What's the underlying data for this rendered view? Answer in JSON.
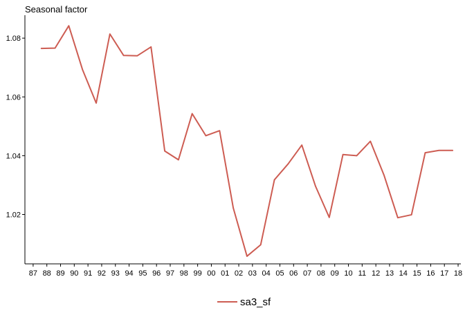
{
  "chart_data": {
    "type": "line",
    "ylabel": "Seasonal factor",
    "xlabel": "",
    "title": "",
    "categories": [
      "87",
      "88",
      "89",
      "90",
      "91",
      "92",
      "93",
      "94",
      "95",
      "96",
      "97",
      "98",
      "99",
      "00",
      "01",
      "02",
      "03",
      "04",
      "05",
      "06",
      "07",
      "08",
      "09",
      "10",
      "11",
      "12",
      "13",
      "14",
      "15",
      "16",
      "17",
      "18"
    ],
    "x_tick_values": [
      1987,
      1988,
      1989,
      1990,
      1991,
      1992,
      1993,
      1994,
      1995,
      1996,
      1997,
      1998,
      1999,
      2000,
      2001,
      2002,
      2003,
      2004,
      2005,
      2006,
      2007,
      2008,
      2009,
      2010,
      2011,
      2012,
      2013,
      2014,
      2015,
      2016,
      2017,
      2018
    ],
    "xlim": [
      1986.4,
      2018.2
    ],
    "ylim": [
      1.0032,
      1.0878
    ],
    "y_ticks": [
      1.02,
      1.04,
      1.06,
      1.08
    ],
    "y_tick_labels": [
      "1.02",
      "1.04",
      "1.06",
      "1.08"
    ],
    "grid": false,
    "legend": "bottom",
    "series": [
      {
        "name": "sa3_sf",
        "color": "#cd5c52",
        "x": [
          1987.6,
          1988.6,
          1989.6,
          1990.6,
          1991.6,
          1992.6,
          1993.6,
          1994.6,
          1995.6,
          1996.6,
          1997.6,
          1998.6,
          1999.6,
          2000.6,
          2001.6,
          2002.6,
          2003.6,
          2004.6,
          2005.6,
          2006.6,
          2007.6,
          2008.6,
          2009.6,
          2010.6,
          2011.6,
          2012.6,
          2013.6,
          2014.6,
          2015.6,
          2016.6,
          2017.6
        ],
        "y": [
          1.0765,
          1.0766,
          1.0842,
          1.0693,
          1.0579,
          1.0814,
          1.0741,
          1.074,
          1.077,
          1.0416,
          1.0386,
          1.0543,
          1.0468,
          1.0485,
          1.0222,
          1.0058,
          1.0097,
          1.0318,
          1.0372,
          1.0436,
          1.0296,
          1.019,
          1.0404,
          1.04,
          1.0449,
          1.0333,
          1.0189,
          1.0199,
          1.041,
          1.0418,
          1.0418
        ]
      }
    ]
  }
}
